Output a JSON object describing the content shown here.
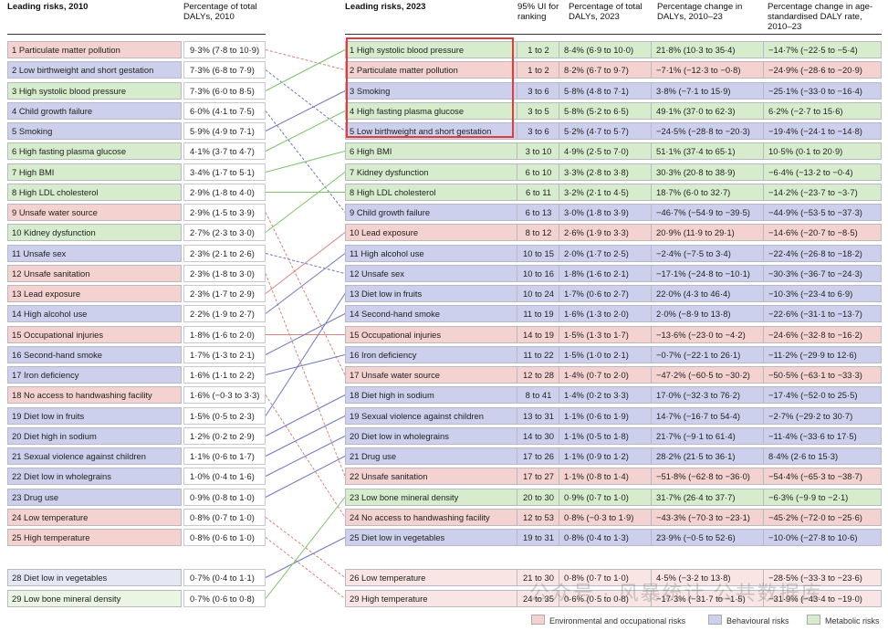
{
  "headers": {
    "left_risk": "Leading risks, 2010",
    "left_pct": "Percentage of total DALYs, 2010",
    "right_risk": "Leading risks, 2023",
    "right_ui": "95% UI for ranking",
    "right_pct": "Percentage of total DALYs, 2023",
    "right_change": "Percentage change in DALYs, 2010–23",
    "right_asr": "Percentage change in age-standardised DALY rate, 2010–23"
  },
  "colors": {
    "env": "#f3d2cf",
    "beh": "#cdd0ec",
    "met": "#d6eccc"
  },
  "left_rows": [
    {
      "label": "1 Particulate matter pollution",
      "pct": "9·3% (7·8 to 10·9)",
      "cat": "env"
    },
    {
      "label": "2 Low birthweight and short gestation",
      "pct": "7·3% (6·8 to 7·9)",
      "cat": "beh"
    },
    {
      "label": "3 High systolic blood pressure",
      "pct": "7·3% (6·0 to 8·5)",
      "cat": "met"
    },
    {
      "label": "4 Child growth failure",
      "pct": "6·0% (4·1 to 7·5)",
      "cat": "beh"
    },
    {
      "label": "5 Smoking",
      "pct": "5·9% (4·9 to 7·1)",
      "cat": "beh"
    },
    {
      "label": "6 High fasting plasma glucose",
      "pct": "4·1% (3·7 to 4·7)",
      "cat": "met"
    },
    {
      "label": "7 High BMI",
      "pct": "3·4% (1·7 to 5·1)",
      "cat": "met"
    },
    {
      "label": "8 High LDL cholesterol",
      "pct": "2·9% (1·8 to 4·0)",
      "cat": "met"
    },
    {
      "label": "9 Unsafe water source",
      "pct": "2·9% (1·5 to 3·9)",
      "cat": "env"
    },
    {
      "label": "10 Kidney dysfunction",
      "pct": "2·7% (2·3 to 3·0)",
      "cat": "met"
    },
    {
      "label": "11 Unsafe sex",
      "pct": "2·3% (2·1 to 2·6)",
      "cat": "beh"
    },
    {
      "label": "12 Unsafe sanitation",
      "pct": "2·3% (1·8 to 3·0)",
      "cat": "env"
    },
    {
      "label": "13 Lead exposure",
      "pct": "2·3% (1·7 to 2·9)",
      "cat": "env"
    },
    {
      "label": "14 High alcohol use",
      "pct": "2·2% (1·9 to 2·7)",
      "cat": "beh"
    },
    {
      "label": "15 Occupational injuries",
      "pct": "1·8% (1·6 to 2·0)",
      "cat": "env"
    },
    {
      "label": "16 Second-hand smoke",
      "pct": "1·7% (1·3 to 2·1)",
      "cat": "beh"
    },
    {
      "label": "17 Iron deficiency",
      "pct": "1·6% (1·1 to 2·2)",
      "cat": "beh"
    },
    {
      "label": "18 No access to handwashing facility",
      "pct": "1·6% (−0·3 to 3·3)",
      "cat": "env"
    },
    {
      "label": "19 Diet low in fruits",
      "pct": "1·5% (0·5 to 2·3)",
      "cat": "beh"
    },
    {
      "label": "20 Diet high in sodium",
      "pct": "1·2% (0·2 to 2·9)",
      "cat": "beh"
    },
    {
      "label": "21 Sexual violence against children",
      "pct": "1·1% (0·6 to 1·7)",
      "cat": "beh"
    },
    {
      "label": "22 Diet low in wholegrains",
      "pct": "1·0% (0·4 to 1·6)",
      "cat": "beh"
    },
    {
      "label": "23 Drug use",
      "pct": "0·9% (0·8 to 1·0)",
      "cat": "beh"
    },
    {
      "label": "24 Low temperature",
      "pct": "0·8% (0·7 to 1·0)",
      "cat": "env"
    },
    {
      "label": "25 High temperature",
      "pct": "0·8% (0·6 to 1·0)",
      "cat": "env"
    }
  ],
  "left_extra": [
    {
      "label": "28 Diet low in vegetables",
      "pct": "0·7% (0·4 to 1·1)",
      "cat": "beh"
    },
    {
      "label": "29 Low bone mineral density",
      "pct": "0·7% (0·6 to 0·8)",
      "cat": "met"
    }
  ],
  "right_rows": [
    {
      "label": "1 High systolic blood pressure",
      "ui": "1 to 2",
      "pct": "8·4% (6·9 to 10·0)",
      "change": "21·8% (10·3 to 35·4)",
      "asr": "−14·7% (−22·5 to −5·4)",
      "cat": "met"
    },
    {
      "label": "2 Particulate matter pollution",
      "ui": "1 to 2",
      "pct": "8·2% (6·7 to 9·7)",
      "change": "−7·1% (−12·3 to −0·8)",
      "asr": "−24·9% (−28·6 to −20·9)",
      "cat": "env"
    },
    {
      "label": "3 Smoking",
      "ui": "3 to 6",
      "pct": "5·8% (4·8 to 7·1)",
      "change": "3·8% (−7·1 to 15·9)",
      "asr": "−25·1% (−33·0 to −16·4)",
      "cat": "beh"
    },
    {
      "label": "4 High fasting plasma glucose",
      "ui": "3 to 5",
      "pct": "5·8% (5·2 to 6·5)",
      "change": "49·1% (37·0 to 62·3)",
      "asr": "6·2% (−2·7 to 15·6)",
      "cat": "met"
    },
    {
      "label": "5 Low birthweight and short gestation",
      "ui": "3 to 6",
      "pct": "5·2% (4·7 to 5·7)",
      "change": "−24·5% (−28·8 to −20·3)",
      "asr": "−19·4% (−24·1 to −14·8)",
      "cat": "beh"
    },
    {
      "label": "6 High BMI",
      "ui": "3 to 10",
      "pct": "4·9% (2·5 to 7·0)",
      "change": "51·1% (37·4 to 65·1)",
      "asr": "10·5% (0·1 to 20·9)",
      "cat": "met"
    },
    {
      "label": "7 Kidney dysfunction",
      "ui": "6 to 10",
      "pct": "3·3% (2·8 to 3·8)",
      "change": "30·3% (20·8 to 38·9)",
      "asr": "−6·4% (−13·2 to −0·4)",
      "cat": "met"
    },
    {
      "label": "8 High LDL cholesterol",
      "ui": "6 to 11",
      "pct": "3·2% (2·1 to 4·5)",
      "change": "18·7% (6·0 to 32·7)",
      "asr": "−14·2% (−23·7 to −3·7)",
      "cat": "met"
    },
    {
      "label": "9 Child growth failure",
      "ui": "6 to 13",
      "pct": "3·0% (1·8 to 3·9)",
      "change": "−46·7% (−54·9 to −39·5)",
      "asr": "−44·9% (−53·5 to −37·3)",
      "cat": "beh"
    },
    {
      "label": "10 Lead exposure",
      "ui": "8 to 12",
      "pct": "2·6% (1·9 to 3·3)",
      "change": "20·9% (11·9 to 29·1)",
      "asr": "−14·6% (−20·7 to −8·5)",
      "cat": "env"
    },
    {
      "label": "11 High alcohol use",
      "ui": "10 to 15",
      "pct": "2·0% (1·7 to 2·5)",
      "change": "−2·4% (−7·5 to 3·4)",
      "asr": "−22·4% (−26·8 to −18·2)",
      "cat": "beh"
    },
    {
      "label": "12 Unsafe sex",
      "ui": "10 to 16",
      "pct": "1·8% (1·6 to 2·1)",
      "change": "−17·1% (−24·8 to −10·1)",
      "asr": "−30·3% (−36·7 to −24·3)",
      "cat": "beh"
    },
    {
      "label": "13 Diet low in fruits",
      "ui": "10 to 24",
      "pct": "1·7% (0·6 to 2·7)",
      "change": "22·0% (4·3 to 46·4)",
      "asr": "−10·3% (−23·4 to 6·9)",
      "cat": "beh"
    },
    {
      "label": "14 Second-hand smoke",
      "ui": "11 to 19",
      "pct": "1·6% (1·3 to 2·0)",
      "change": "2·0% (−8·9 to 13·8)",
      "asr": "−22·6% (−31·1 to −13·7)",
      "cat": "beh"
    },
    {
      "label": "15 Occupational injuries",
      "ui": "14 to 19",
      "pct": "1·5% (1·3 to 1·7)",
      "change": "−13·6% (−23·0 to −4·2)",
      "asr": "−24·6% (−32·8 to −16·2)",
      "cat": "env"
    },
    {
      "label": "16 Iron deficiency",
      "ui": "11 to 22",
      "pct": "1·5% (1·0 to 2·1)",
      "change": "−0·7% (−22·1 to 26·1)",
      "asr": "−11·2% (−29·9 to 12·6)",
      "cat": "beh"
    },
    {
      "label": "17 Unsafe water source",
      "ui": "12 to 28",
      "pct": "1·4% (0·7 to 2·0)",
      "change": "−47·2% (−60·5 to −30·2)",
      "asr": "−50·5% (−63·1 to −33·3)",
      "cat": "env"
    },
    {
      "label": "18 Diet high in sodium",
      "ui": "8 to 41",
      "pct": "1·4% (0·2 to 3·3)",
      "change": "17·0% (−32·3 to 76·2)",
      "asr": "−17·4% (−52·0 to 25·5)",
      "cat": "beh"
    },
    {
      "label": "19 Sexual violence against children",
      "ui": "13 to 31",
      "pct": "1·1% (0·6 to 1·9)",
      "change": "14·7% (−16·7 to 54·4)",
      "asr": "−2·7% (−29·2 to 30·7)",
      "cat": "beh"
    },
    {
      "label": "20 Diet low in wholegrains",
      "ui": "14 to 30",
      "pct": "1·1% (0·5 to 1·8)",
      "change": "21·7% (−9·1 to 61·4)",
      "asr": "−11·4% (−33·6 to 17·5)",
      "cat": "beh"
    },
    {
      "label": "21 Drug use",
      "ui": "17 to 26",
      "pct": "1·1% (0·9 to 1·2)",
      "change": "28·2% (21·5 to 36·1)",
      "asr": "8·4% (2·6 to 15·3)",
      "cat": "beh"
    },
    {
      "label": "22 Unsafe sanitation",
      "ui": "17 to 27",
      "pct": "1·1% (0·8 to 1·4)",
      "change": "−51·8% (−62·8 to −36·0)",
      "asr": "−54·4% (−65·3 to −38·7)",
      "cat": "env"
    },
    {
      "label": "23 Low bone mineral density",
      "ui": "20 to 30",
      "pct": "0·9% (0·7 to 1·0)",
      "change": "31·7% (26·4 to 37·7)",
      "asr": "−6·3% (−9·9 to −2·1)",
      "cat": "met"
    },
    {
      "label": "24 No access to handwashing facility",
      "ui": "12 to 53",
      "pct": "0·8% (−0·3 to 1·9)",
      "change": "−43·3% (−70·3 to −23·1)",
      "asr": "−45·2% (−72·0 to −25·6)",
      "cat": "env"
    },
    {
      "label": "25 Diet low in vegetables",
      "ui": "19 to 31",
      "pct": "0·8% (0·4 to 1·3)",
      "change": "23·9% (−0·5 to 52·6)",
      "asr": "−10·0% (−27·8 to 10·6)",
      "cat": "beh"
    }
  ],
  "right_extra": [
    {
      "label": "26 Low temperature",
      "ui": "21 to 30",
      "pct": "0·8% (0·7 to 1·0)",
      "change": "4·5% (−3·2 to 13·8)",
      "asr": "−28·5% (−33·3 to −23·6)",
      "cat": "env"
    },
    {
      "label": "29 High temperature",
      "ui": "24 to 35",
      "pct": "0·6% (0·5 to 0·8)",
      "change": "−17·3% (−31·7 to −1·5)",
      "asr": "−31·9% (−43·4 to −19·0)",
      "cat": "env"
    }
  ],
  "links": [
    {
      "from": 1,
      "to": 2,
      "cat": "env"
    },
    {
      "from": 2,
      "to": 5,
      "cat": "beh"
    },
    {
      "from": 3,
      "to": 1,
      "cat": "met"
    },
    {
      "from": 4,
      "to": 9,
      "cat": "beh"
    },
    {
      "from": 5,
      "to": 3,
      "cat": "beh"
    },
    {
      "from": 6,
      "to": 4,
      "cat": "met"
    },
    {
      "from": 7,
      "to": 6,
      "cat": "met"
    },
    {
      "from": 8,
      "to": 8,
      "cat": "met"
    },
    {
      "from": 9,
      "to": 17,
      "cat": "env"
    },
    {
      "from": 10,
      "to": 7,
      "cat": "met"
    },
    {
      "from": 11,
      "to": 12,
      "cat": "beh"
    },
    {
      "from": 12,
      "to": 22,
      "cat": "env"
    },
    {
      "from": 13,
      "to": 10,
      "cat": "env"
    },
    {
      "from": 14,
      "to": 11,
      "cat": "beh"
    },
    {
      "from": 15,
      "to": 15,
      "cat": "env"
    },
    {
      "from": 16,
      "to": 14,
      "cat": "beh"
    },
    {
      "from": 17,
      "to": 16,
      "cat": "beh"
    },
    {
      "from": 18,
      "to": 24,
      "cat": "env"
    },
    {
      "from": 19,
      "to": 13,
      "cat": "beh"
    },
    {
      "from": 20,
      "to": 18,
      "cat": "beh"
    },
    {
      "from": 21,
      "to": 19,
      "cat": "beh"
    },
    {
      "from": 22,
      "to": 20,
      "cat": "beh"
    },
    {
      "from": 23,
      "to": 21,
      "cat": "beh"
    },
    {
      "from": 24,
      "to": 26,
      "cat": "env"
    },
    {
      "from": 25,
      "to": 29,
      "cat": "env"
    },
    {
      "from": 28,
      "to": 25,
      "cat": "beh"
    },
    {
      "from": 29,
      "to": 23,
      "cat": "met"
    }
  ],
  "legend": {
    "env": "Environmental and occupational risks",
    "beh": "Behavioural risks",
    "met": "Metabolic risks"
  },
  "watermark": "公众号 · 风暴统计 公共数据库"
}
